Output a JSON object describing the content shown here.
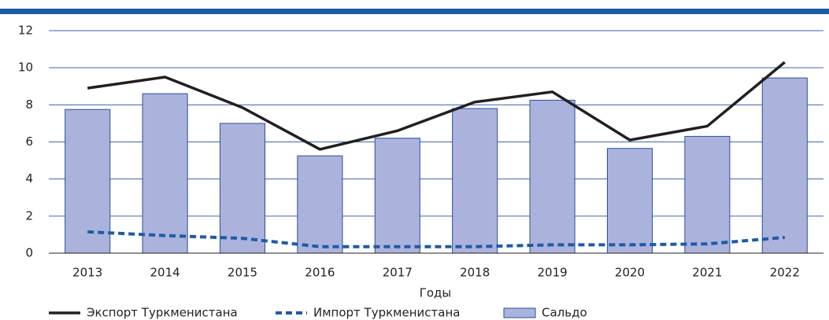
{
  "chart_data": {
    "type": "bar",
    "x_label": "Годы",
    "categories": [
      "2013",
      "2014",
      "2015",
      "2016",
      "2017",
      "2018",
      "2019",
      "2020",
      "2021",
      "2022"
    ],
    "series": [
      {
        "name": "Экспорт Туркменистана",
        "type": "line",
        "color": "#231f20",
        "values": [
          8.9,
          9.5,
          7.85,
          5.6,
          6.6,
          8.15,
          8.7,
          6.1,
          6.85,
          10.3
        ]
      },
      {
        "name": "Импорт Туркменистана",
        "type": "line",
        "dashed": true,
        "color": "#1f5aa6",
        "values": [
          1.15,
          0.95,
          0.8,
          0.35,
          0.35,
          0.35,
          0.45,
          0.45,
          0.5,
          0.85
        ]
      },
      {
        "name": "Сальдо",
        "type": "bar",
        "color": "#abb3dc",
        "values": [
          7.75,
          8.6,
          7.0,
          5.25,
          6.2,
          7.8,
          8.25,
          5.65,
          6.3,
          9.45
        ]
      }
    ],
    "ylim": [
      0,
      12
    ],
    "yticks": [
      0,
      2,
      4,
      6,
      8,
      10,
      12
    ],
    "grid": true
  }
}
